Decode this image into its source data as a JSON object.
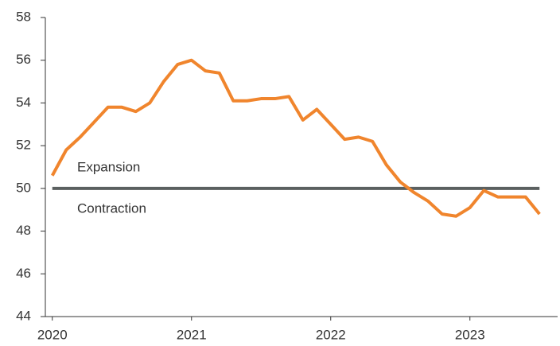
{
  "chart_data": {
    "type": "line",
    "x": [
      2020.0,
      2020.1,
      2020.2,
      2020.3,
      2020.4,
      2020.5,
      2020.6,
      2020.7,
      2020.8,
      2020.9,
      2021.0,
      2021.1,
      2021.2,
      2021.3,
      2021.4,
      2021.5,
      2021.6,
      2021.7,
      2021.8,
      2021.9,
      2022.0,
      2022.1,
      2022.2,
      2022.3,
      2022.4,
      2022.5,
      2022.6,
      2022.7,
      2022.8,
      2022.9,
      2023.0,
      2023.1,
      2023.2,
      2023.3,
      2023.4,
      2023.5
    ],
    "series": [
      {
        "color": "#f0852d",
        "values": [
          50.6,
          51.8,
          52.4,
          53.1,
          53.8,
          53.8,
          53.6,
          54.0,
          55.0,
          55.8,
          56.0,
          55.5,
          55.4,
          54.1,
          54.1,
          54.2,
          54.2,
          54.3,
          53.2,
          53.7,
          53.0,
          52.3,
          52.4,
          52.2,
          51.1,
          50.3,
          49.8,
          49.4,
          48.8,
          48.7,
          49.1,
          49.9,
          49.6,
          49.6,
          49.6,
          48.8
        ]
      }
    ],
    "reference_line": {
      "value": 50,
      "color": "#5b6060"
    },
    "annotations": [
      "Expansion",
      "Contraction"
    ],
    "xlim": [
      2019.95,
      2023.63
    ],
    "xticks": [
      2020,
      2021,
      2022,
      2023
    ],
    "ylim": [
      44,
      58
    ],
    "yticks": [
      44,
      46,
      48,
      50,
      52,
      54,
      56,
      58
    ]
  }
}
